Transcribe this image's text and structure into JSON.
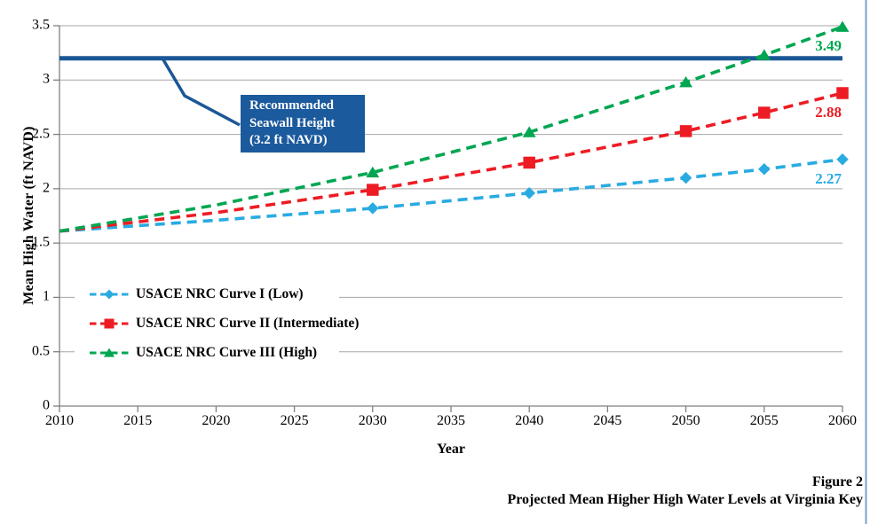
{
  "figure": {
    "caption_line1": "Figure 2",
    "caption_line2": "Projected Mean Higher High Water Levels at Virginia Key"
  },
  "callout": {
    "line1": "Recommended",
    "line2": "Seawall Height",
    "line3": "(3.2 ft NAVD)",
    "bg_color": "#1B5A9C",
    "text_color": "#FFFFFF"
  },
  "chart_data": {
    "type": "line",
    "title": "",
    "xlabel": "Year",
    "ylabel": "Mean High Water (ft NAVD)",
    "xlim": [
      2010,
      2060
    ],
    "ylim": [
      0,
      3.5
    ],
    "x_ticks": [
      "2010",
      "2015",
      "2020",
      "2025",
      "2030",
      "2035",
      "2040",
      "2045",
      "2050",
      "2055",
      "2060"
    ],
    "y_ticks": [
      "0",
      "0.5",
      "1",
      "1.5",
      "2",
      "2.5",
      "3",
      "3.5"
    ],
    "grid": true,
    "gridline_color": "#A6A6A6",
    "axis_color": "#7F7F7F",
    "legend_position": "inside-left",
    "reference_line": {
      "label": "Recommended Seawall Height (3.2 ft NAVD)",
      "value": 3.2,
      "color": "#1B5796"
    },
    "series": [
      {
        "name": "USACE NRC Curve I (Low)",
        "color": "#29ABE2",
        "marker": "diamond",
        "x": [
          2010,
          2020,
          2030,
          2040,
          2050,
          2055,
          2060
        ],
        "values": [
          1.61,
          1.71,
          1.82,
          1.96,
          2.1,
          2.18,
          2.27
        ],
        "marker_x": [
          2030,
          2040,
          2050,
          2055,
          2060
        ],
        "end_label": "2.27"
      },
      {
        "name": "USACE NRC Curve II (Intermediate)",
        "color": "#ED1C24",
        "marker": "square",
        "x": [
          2010,
          2020,
          2030,
          2040,
          2050,
          2055,
          2060
        ],
        "values": [
          1.61,
          1.78,
          1.99,
          2.24,
          2.53,
          2.7,
          2.88
        ],
        "marker_x": [
          2030,
          2040,
          2050,
          2055,
          2060
        ],
        "end_label": "2.88"
      },
      {
        "name": "USACE NRC Curve III (High)",
        "color": "#00A651",
        "marker": "triangle",
        "x": [
          2010,
          2020,
          2030,
          2040,
          2050,
          2055,
          2060
        ],
        "values": [
          1.61,
          1.85,
          2.15,
          2.52,
          2.98,
          3.23,
          3.49
        ],
        "marker_x": [
          2030,
          2040,
          2050,
          2055,
          2060
        ],
        "end_label": "3.49"
      }
    ],
    "page_border_color": "#7BA0CF"
  }
}
